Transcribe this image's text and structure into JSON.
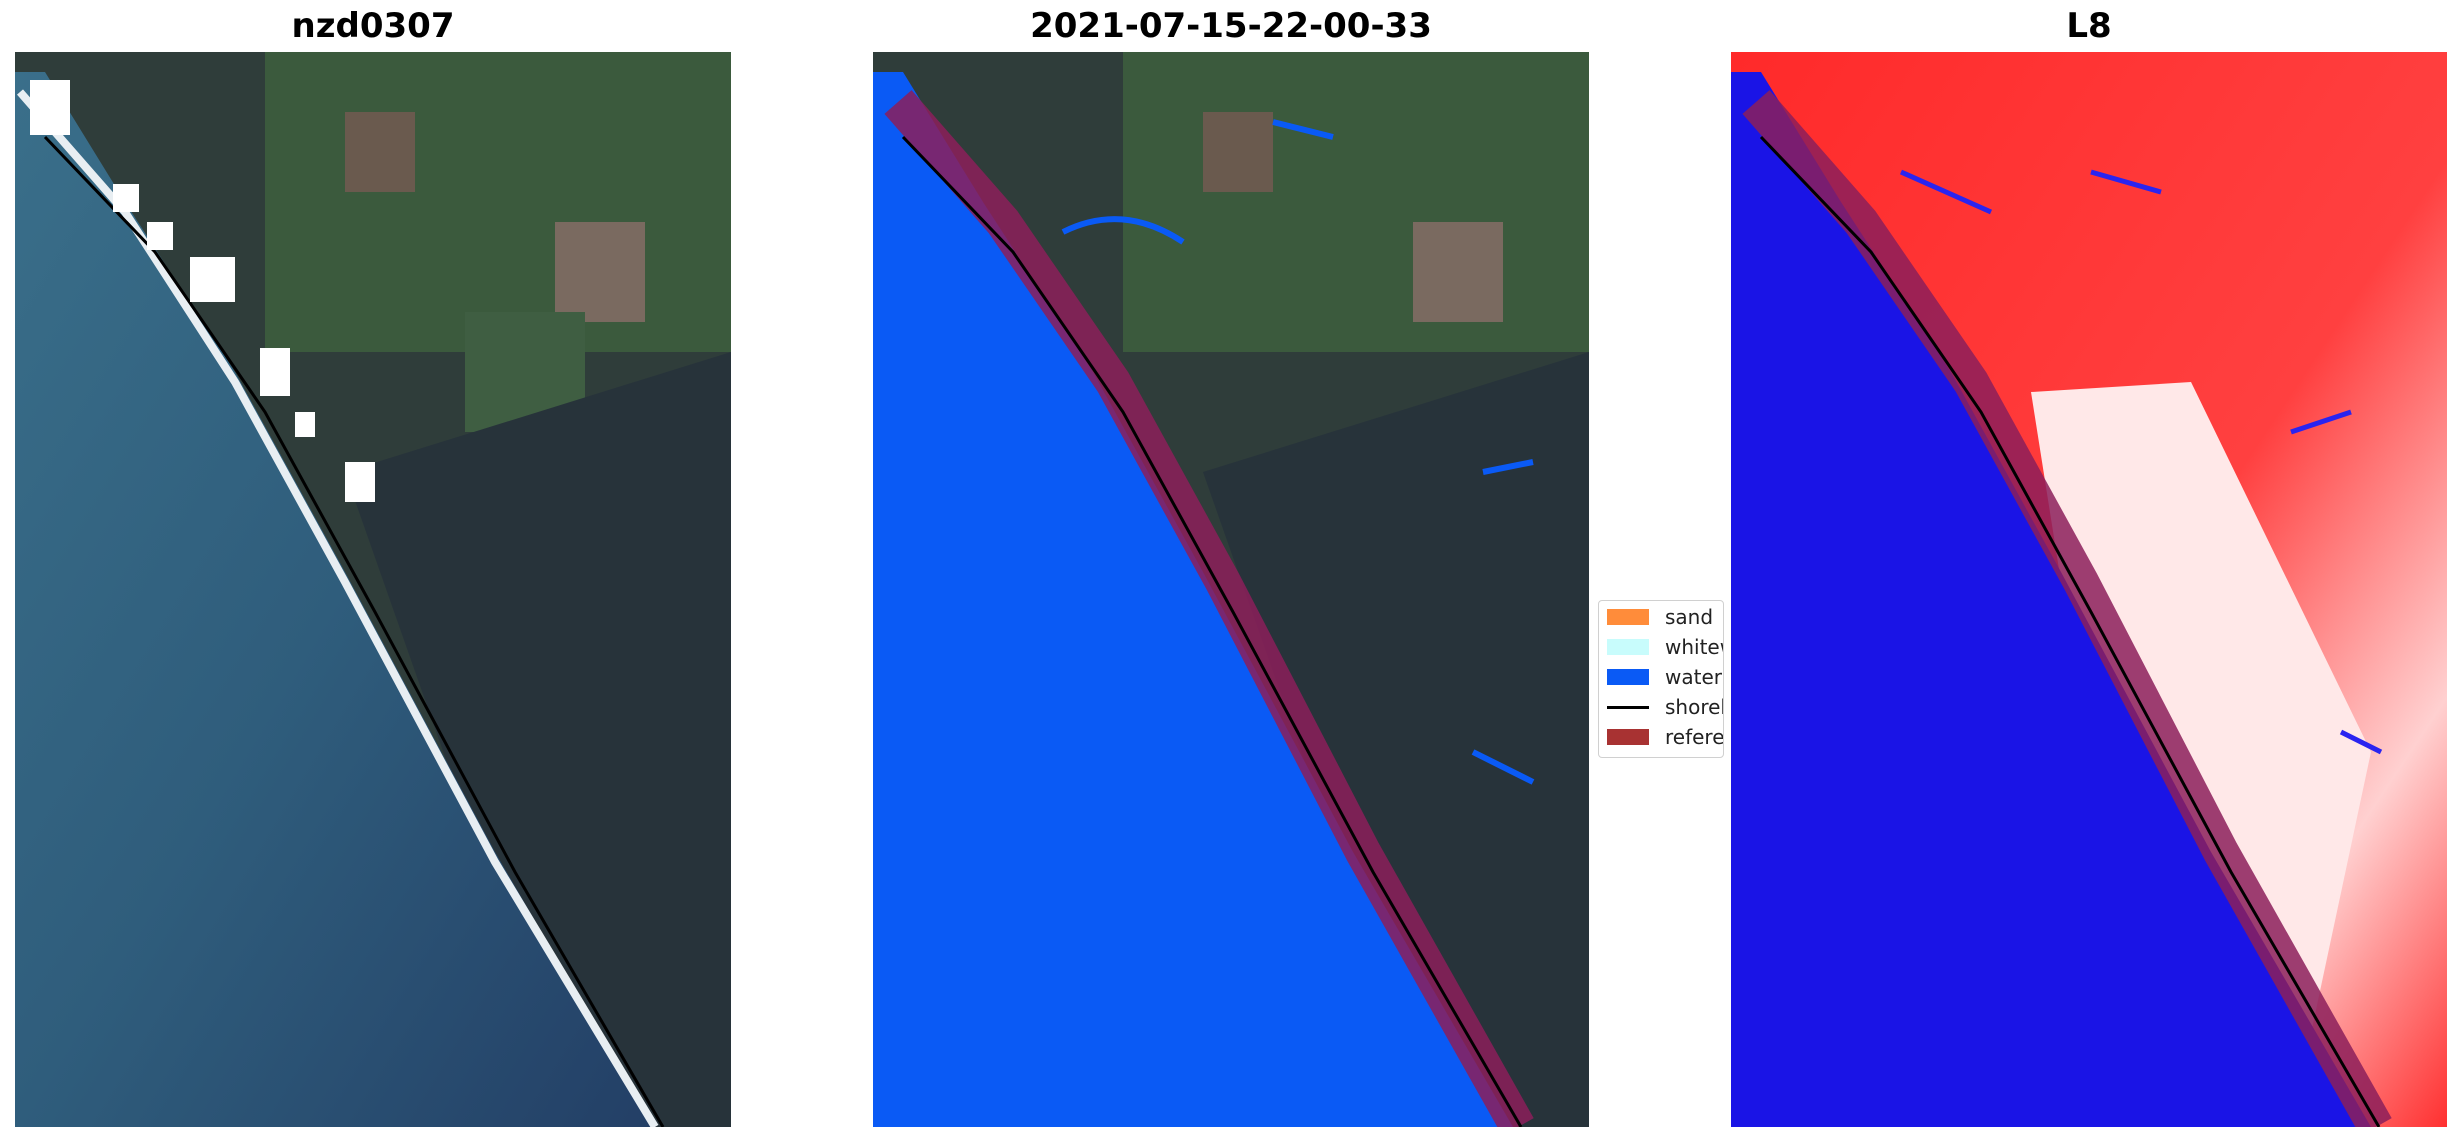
{
  "panels": [
    {
      "title": "nzd0307"
    },
    {
      "title": "2021-07-15-22-00-33"
    },
    {
      "title": "L8"
    }
  ],
  "legend": {
    "items": [
      {
        "label": "sand",
        "color": "#ff8c3a"
      },
      {
        "label": "whitew",
        "color": "#c8fcfc"
      },
      {
        "label": "water",
        "color": "#0a5af5"
      },
      {
        "label": "shorel",
        "color": "#000000"
      },
      {
        "label": "referen",
        "color": "#a83232"
      }
    ]
  },
  "colors": {
    "ocean": "#2f5f7e",
    "land": "#2e3c3a",
    "classified_water": "#0a5af5",
    "reference_buffer": "#8c1e5a",
    "index_water": "#1a14e6",
    "index_land": "#ff2a2a"
  }
}
